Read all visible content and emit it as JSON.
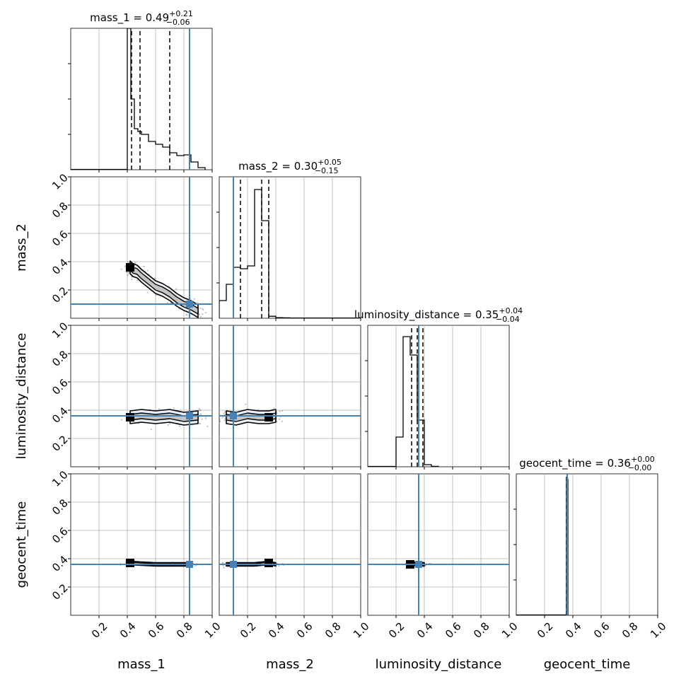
{
  "chart_data": {
    "type": "corner",
    "grid": true,
    "params": [
      "mass_1",
      "mass_2",
      "luminosity_distance",
      "geocent_time"
    ],
    "truths": [
      0.84,
      0.1,
      0.36,
      0.36
    ],
    "truth_color": "#4682b4",
    "axis_range": [
      0,
      1
    ],
    "ticks": [
      "0.2",
      "0.4",
      "0.6",
      "0.8",
      "1.0"
    ],
    "titles": [
      {
        "name": "mass_1",
        "median": "0.49",
        "plus": "+0.21",
        "minus": "−0.06"
      },
      {
        "name": "mass_2",
        "median": "0.30",
        "plus": "+0.05",
        "minus": "−0.15"
      },
      {
        "name": "luminosity_distance",
        "median": "0.35",
        "plus": "+0.04",
        "minus": "−0.04"
      },
      {
        "name": "geocent_time",
        "median": "0.36",
        "plus": "+0.00",
        "minus": "−0.00"
      }
    ],
    "quantiles": [
      [
        0.43,
        0.49,
        0.7
      ],
      [
        0.15,
        0.3,
        0.35
      ],
      [
        0.31,
        0.35,
        0.39
      ],
      [
        0.355,
        0.36,
        0.362
      ]
    ],
    "histograms": [
      {
        "edges": [
          0.4,
          0.425,
          0.45,
          0.475,
          0.5,
          0.55,
          0.6,
          0.65,
          0.7,
          0.75,
          0.8,
          0.85,
          0.9,
          0.95
        ],
        "heights": [
          1.0,
          0.5,
          0.29,
          0.27,
          0.25,
          0.2,
          0.18,
          0.16,
          0.12,
          0.1,
          0.105,
          0.055,
          0.015
        ]
      },
      {
        "edges": [
          0.0,
          0.05,
          0.1,
          0.15,
          0.2,
          0.25,
          0.3,
          0.35,
          0.4,
          0.45,
          0.5,
          0.55,
          0.6,
          0.65,
          0.7,
          0.75,
          0.8,
          0.85,
          0.9,
          0.95,
          1.0
        ],
        "heights": [
          0.125,
          0.24,
          0.36,
          0.35,
          0.37,
          0.91,
          0.69,
          0.014,
          0.004,
          0.003,
          0.002,
          0.002,
          0.002,
          0.002,
          0.002,
          0.002,
          0.002,
          0.002,
          0.002,
          0.002
        ]
      },
      {
        "edges": [
          0.2,
          0.25,
          0.3,
          0.35,
          0.4,
          0.45,
          0.5
        ],
        "heights": [
          0.21,
          0.92,
          0.79,
          0.33,
          0.015,
          0.003
        ]
      },
      {
        "edges": [
          0.355,
          0.36,
          0.365
        ],
        "heights": [
          0.97,
          0.96
        ]
      }
    ],
    "scatter_2d": [
      {
        "x": "mass_1",
        "y": "mass_2",
        "points": [
          [
            0.42,
            0.36
          ],
          [
            0.44,
            0.34
          ],
          [
            0.47,
            0.33
          ],
          [
            0.5,
            0.3
          ],
          [
            0.55,
            0.26
          ],
          [
            0.6,
            0.22
          ],
          [
            0.65,
            0.2
          ],
          [
            0.7,
            0.17
          ],
          [
            0.75,
            0.13
          ],
          [
            0.8,
            0.1
          ],
          [
            0.85,
            0.08
          ],
          [
            0.9,
            0.05
          ]
        ]
      },
      {
        "x": "mass_1",
        "y": "luminosity_distance",
        "points": [
          [
            0.42,
            0.35
          ],
          [
            0.5,
            0.36
          ],
          [
            0.6,
            0.35
          ],
          [
            0.7,
            0.36
          ],
          [
            0.8,
            0.34
          ],
          [
            0.9,
            0.35
          ]
        ]
      },
      {
        "x": "mass_2",
        "y": "luminosity_distance",
        "points": [
          [
            0.05,
            0.35
          ],
          [
            0.12,
            0.34
          ],
          [
            0.2,
            0.36
          ],
          [
            0.28,
            0.35
          ],
          [
            0.35,
            0.35
          ],
          [
            0.4,
            0.36
          ]
        ]
      },
      {
        "x": "mass_1",
        "y": "geocent_time",
        "points": [
          [
            0.42,
            0.37
          ],
          [
            0.5,
            0.365
          ],
          [
            0.6,
            0.36
          ],
          [
            0.7,
            0.36
          ],
          [
            0.85,
            0.36
          ]
        ]
      },
      {
        "x": "mass_2",
        "y": "geocent_time",
        "points": [
          [
            0.05,
            0.36
          ],
          [
            0.15,
            0.36
          ],
          [
            0.25,
            0.36
          ],
          [
            0.35,
            0.37
          ],
          [
            0.4,
            0.36
          ]
        ]
      },
      {
        "x": "luminosity_distance",
        "y": "geocent_time",
        "points": [
          [
            0.3,
            0.36
          ],
          [
            0.35,
            0.365
          ],
          [
            0.4,
            0.36
          ]
        ]
      }
    ]
  }
}
